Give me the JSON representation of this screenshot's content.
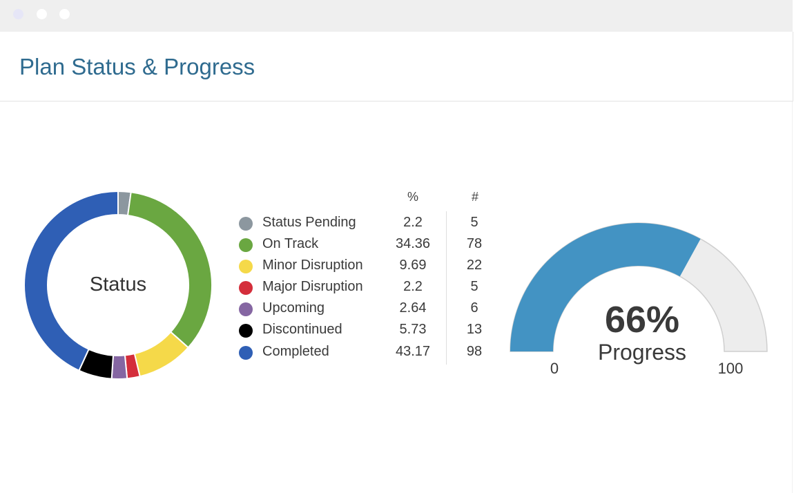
{
  "window": {
    "title_bar_buttons": [
      "close",
      "minimize",
      "maximize"
    ]
  },
  "header": {
    "title": "Plan Status & Progress"
  },
  "status_chart": {
    "center_label": "Status",
    "columns": {
      "percent": "%",
      "count": "#"
    },
    "items": [
      {
        "label": "Status Pending",
        "percent": "2.2",
        "count": "5",
        "color": "#8c979f"
      },
      {
        "label": "On Track",
        "percent": "34.36",
        "count": "78",
        "color": "#6aa741"
      },
      {
        "label": "Minor Disruption",
        "percent": "9.69",
        "count": "22",
        "color": "#f5d949"
      },
      {
        "label": "Major Disruption",
        "percent": "2.2",
        "count": "5",
        "color": "#d42e3b"
      },
      {
        "label": "Upcoming",
        "percent": "2.64",
        "count": "6",
        "color": "#8566a2"
      },
      {
        "label": "Discontinued",
        "percent": "5.73",
        "count": "13",
        "color": "#000000"
      },
      {
        "label": "Completed",
        "percent": "43.17",
        "count": "98",
        "color": "#2f5fb5"
      }
    ]
  },
  "progress_gauge": {
    "value_text": "66%",
    "label": "Progress",
    "min_label": "0",
    "max_label": "100",
    "fill_color": "#4393c3",
    "track_color": "#ededed"
  },
  "chart_data": [
    {
      "type": "pie",
      "title": "Status",
      "categories": [
        "Status Pending",
        "On Track",
        "Minor Disruption",
        "Major Disruption",
        "Upcoming",
        "Discontinued",
        "Completed"
      ],
      "values": [
        2.2,
        34.36,
        9.69,
        2.2,
        2.64,
        5.73,
        43.17
      ],
      "counts": [
        5,
        78,
        22,
        5,
        6,
        13,
        98
      ],
      "colors": [
        "#8c979f",
        "#6aa741",
        "#f5d949",
        "#d42e3b",
        "#8566a2",
        "#000000",
        "#2f5fb5"
      ],
      "style": "donut"
    },
    {
      "type": "gauge",
      "title": "Progress",
      "value": 66,
      "min": 0,
      "max": 100
    }
  ]
}
